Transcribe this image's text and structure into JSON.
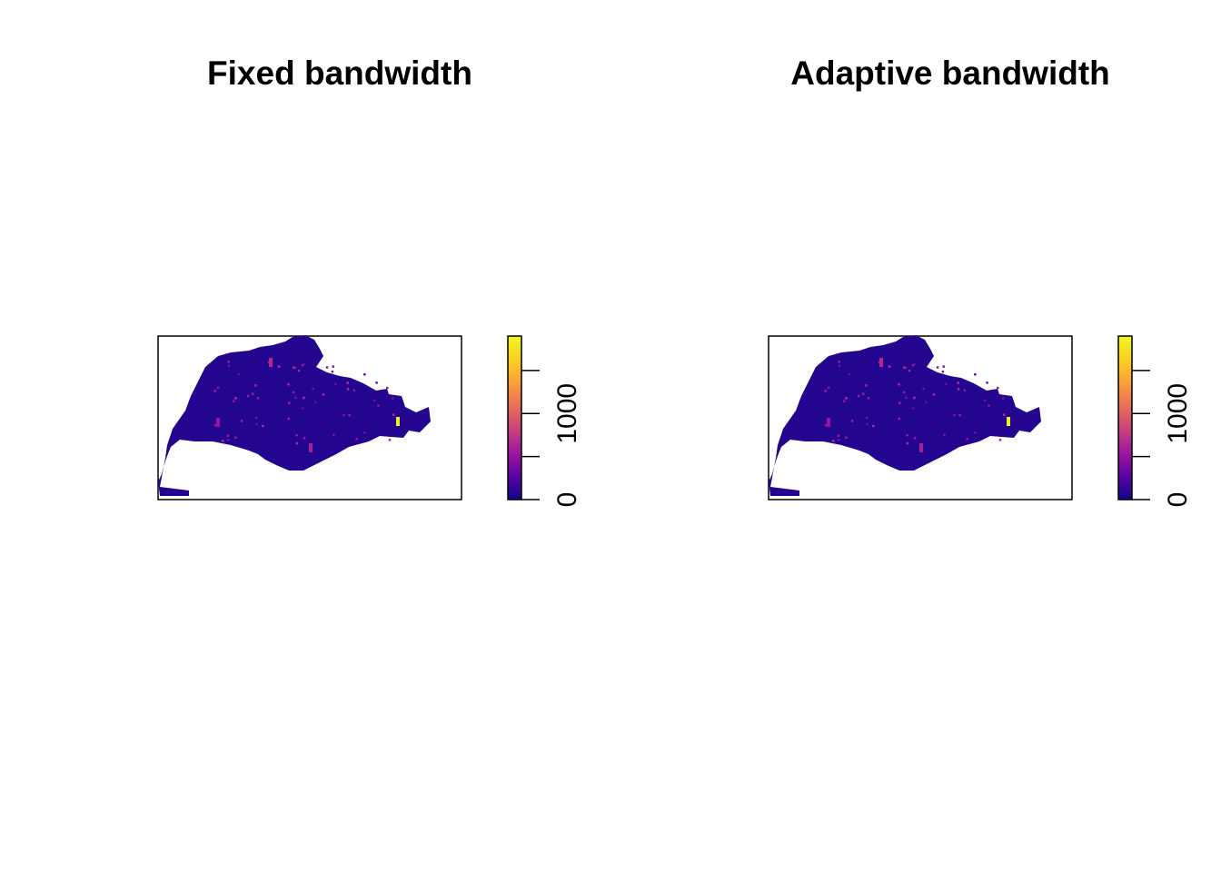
{
  "chart_data": [
    {
      "type": "heatmap",
      "title": "Fixed bandwidth",
      "xlabel": "",
      "ylabel": "",
      "grid": false,
      "legend": "right",
      "colorbar": {
        "palette": [
          "#0C0786",
          "#5C01A6",
          "#9B179E",
          "#C8417D",
          "#E76E5A",
          "#FB9E3A",
          "#FCCE25",
          "#F0F921"
        ],
        "range": [
          0,
          1900
        ],
        "ticks": [
          0,
          500,
          1000,
          1500
        ],
        "tick_labels": [
          "0",
          "1000"
        ]
      },
      "hotspots": [
        {
          "location": "east",
          "value": 1800
        },
        {
          "location": "north-central",
          "value": 650
        },
        {
          "location": "south-central",
          "value": 600
        },
        {
          "location": "west-central",
          "value": 520
        }
      ],
      "background_value": 80
    },
    {
      "type": "heatmap",
      "title": "Adaptive bandwidth",
      "xlabel": "",
      "ylabel": "",
      "grid": false,
      "legend": "right",
      "colorbar": {
        "palette": [
          "#0C0786",
          "#5C01A6",
          "#9B179E",
          "#C8417D",
          "#E76E5A",
          "#FB9E3A",
          "#FCCE25",
          "#F0F921"
        ],
        "range": [
          0,
          1900
        ],
        "ticks": [
          0,
          500,
          1000,
          1500
        ],
        "tick_labels": [
          "0",
          "1000"
        ]
      },
      "hotspots": [
        {
          "location": "east",
          "value": 1800
        },
        {
          "location": "north-central",
          "value": 650
        },
        {
          "location": "south-central",
          "value": 600
        },
        {
          "location": "west-central",
          "value": 520
        }
      ],
      "background_value": 80
    }
  ]
}
